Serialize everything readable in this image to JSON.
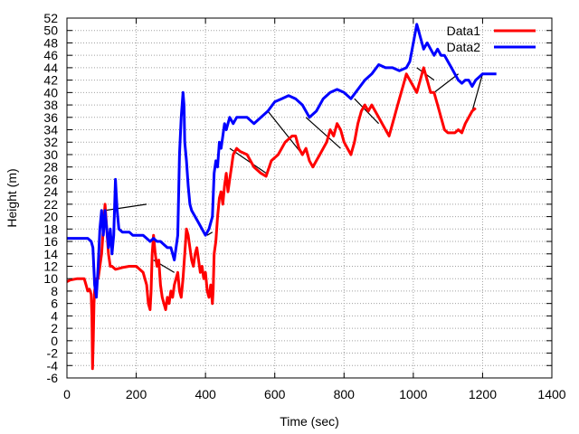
{
  "chart_data": {
    "type": "line",
    "xlabel": "Time (sec)",
    "ylabel": "Height (m)",
    "xlim": [
      0,
      1400
    ],
    "ylim": [
      -6,
      52
    ],
    "xticks": [
      0,
      200,
      400,
      600,
      800,
      1000,
      1200,
      1400
    ],
    "yticks": [
      -6,
      -4,
      -2,
      0,
      2,
      4,
      6,
      8,
      10,
      12,
      14,
      16,
      18,
      20,
      22,
      24,
      26,
      28,
      30,
      32,
      34,
      36,
      38,
      40,
      42,
      44,
      46,
      48,
      50,
      52
    ],
    "grid": true,
    "legend_position": "top-right",
    "series": [
      {
        "name": "Data1",
        "color": "#ff0000",
        "points": [
          [
            0,
            9.5
          ],
          [
            10,
            9.8
          ],
          [
            30,
            10
          ],
          [
            50,
            10
          ],
          [
            55,
            9
          ],
          [
            60,
            8
          ],
          [
            65,
            8.3
          ],
          [
            70,
            7.5
          ],
          [
            72,
            4
          ],
          [
            74,
            -4.5
          ],
          [
            76,
            0
          ],
          [
            78,
            6
          ],
          [
            80,
            8
          ],
          [
            85,
            10
          ],
          [
            90,
            10
          ],
          [
            95,
            12
          ],
          [
            100,
            14
          ],
          [
            105,
            18
          ],
          [
            110,
            22
          ],
          [
            115,
            18
          ],
          [
            120,
            14
          ],
          [
            125,
            12
          ],
          [
            130,
            12
          ],
          [
            140,
            11.5
          ],
          [
            160,
            11.8
          ],
          [
            180,
            12
          ],
          [
            200,
            12
          ],
          [
            210,
            11.5
          ],
          [
            220,
            11
          ],
          [
            230,
            9
          ],
          [
            235,
            6
          ],
          [
            240,
            5
          ],
          [
            243,
            8
          ],
          [
            246,
            14
          ],
          [
            250,
            17
          ],
          [
            255,
            14
          ],
          [
            260,
            12
          ],
          [
            265,
            13
          ],
          [
            270,
            9
          ],
          [
            275,
            7
          ],
          [
            280,
            6
          ],
          [
            285,
            5
          ],
          [
            290,
            7
          ],
          [
            295,
            6
          ],
          [
            300,
            8
          ],
          [
            305,
            7
          ],
          [
            310,
            9
          ],
          [
            315,
            10
          ],
          [
            320,
            11
          ],
          [
            325,
            8
          ],
          [
            330,
            7
          ],
          [
            335,
            10
          ],
          [
            340,
            14
          ],
          [
            345,
            18
          ],
          [
            350,
            17
          ],
          [
            355,
            15
          ],
          [
            360,
            13
          ],
          [
            365,
            12
          ],
          [
            370,
            14
          ],
          [
            375,
            15
          ],
          [
            380,
            13
          ],
          [
            385,
            11
          ],
          [
            390,
            12
          ],
          [
            395,
            10
          ],
          [
            400,
            11
          ],
          [
            405,
            8
          ],
          [
            410,
            7
          ],
          [
            415,
            9
          ],
          [
            420,
            6
          ],
          [
            422,
            8
          ],
          [
            425,
            14
          ],
          [
            430,
            16
          ],
          [
            435,
            20
          ],
          [
            440,
            23
          ],
          [
            445,
            24
          ],
          [
            450,
            22
          ],
          [
            455,
            25
          ],
          [
            460,
            27
          ],
          [
            465,
            24
          ],
          [
            470,
            26
          ],
          [
            475,
            28
          ],
          [
            480,
            30
          ],
          [
            490,
            31
          ],
          [
            500,
            30.5
          ],
          [
            520,
            30
          ],
          [
            540,
            28
          ],
          [
            560,
            27
          ],
          [
            575,
            26.5
          ],
          [
            590,
            29
          ],
          [
            610,
            30
          ],
          [
            630,
            32
          ],
          [
            650,
            33
          ],
          [
            660,
            33
          ],
          [
            670,
            31
          ],
          [
            680,
            30
          ],
          [
            690,
            31
          ],
          [
            700,
            29
          ],
          [
            710,
            28
          ],
          [
            720,
            29
          ],
          [
            730,
            30
          ],
          [
            750,
            32
          ],
          [
            760,
            34
          ],
          [
            770,
            33
          ],
          [
            780,
            35
          ],
          [
            790,
            34
          ],
          [
            800,
            32
          ],
          [
            810,
            31
          ],
          [
            820,
            30
          ],
          [
            830,
            32
          ],
          [
            840,
            35
          ],
          [
            850,
            37
          ],
          [
            860,
            38
          ],
          [
            870,
            37
          ],
          [
            880,
            38
          ],
          [
            890,
            37
          ],
          [
            900,
            36
          ],
          [
            910,
            35
          ],
          [
            920,
            34
          ],
          [
            930,
            33
          ],
          [
            940,
            35
          ],
          [
            950,
            37
          ],
          [
            960,
            39
          ],
          [
            970,
            41
          ],
          [
            980,
            43
          ],
          [
            990,
            42
          ],
          [
            1000,
            41
          ],
          [
            1010,
            40
          ],
          [
            1020,
            42
          ],
          [
            1030,
            44
          ],
          [
            1040,
            42
          ],
          [
            1050,
            40
          ],
          [
            1060,
            40
          ],
          [
            1070,
            38
          ],
          [
            1080,
            36
          ],
          [
            1090,
            34
          ],
          [
            1100,
            33.5
          ],
          [
            1110,
            33.5
          ],
          [
            1120,
            33.5
          ],
          [
            1130,
            34
          ],
          [
            1140,
            33.5
          ],
          [
            1150,
            35
          ],
          [
            1160,
            36
          ],
          [
            1170,
            37
          ],
          [
            1180,
            37.5
          ]
        ]
      },
      {
        "name": "Data2",
        "color": "#0000ff",
        "points": [
          [
            0,
            16.5
          ],
          [
            20,
            16.5
          ],
          [
            40,
            16.5
          ],
          [
            60,
            16.5
          ],
          [
            70,
            16
          ],
          [
            75,
            15
          ],
          [
            80,
            9
          ],
          [
            85,
            7
          ],
          [
            90,
            12
          ],
          [
            95,
            18
          ],
          [
            100,
            21
          ],
          [
            105,
            17
          ],
          [
            110,
            21
          ],
          [
            115,
            18
          ],
          [
            120,
            15
          ],
          [
            125,
            18
          ],
          [
            130,
            14
          ],
          [
            135,
            17
          ],
          [
            140,
            26
          ],
          [
            145,
            21
          ],
          [
            150,
            18
          ],
          [
            160,
            17.5
          ],
          [
            170,
            17.5
          ],
          [
            180,
            17.5
          ],
          [
            190,
            17
          ],
          [
            200,
            17
          ],
          [
            210,
            17
          ],
          [
            220,
            17
          ],
          [
            230,
            16.5
          ],
          [
            240,
            16
          ],
          [
            250,
            16.5
          ],
          [
            260,
            16
          ],
          [
            270,
            16
          ],
          [
            280,
            15.5
          ],
          [
            290,
            15
          ],
          [
            300,
            15
          ],
          [
            310,
            13
          ],
          [
            320,
            17
          ],
          [
            325,
            30
          ],
          [
            330,
            36
          ],
          [
            335,
            40
          ],
          [
            338,
            38
          ],
          [
            340,
            32
          ],
          [
            345,
            29
          ],
          [
            350,
            25
          ],
          [
            355,
            22
          ],
          [
            360,
            21
          ],
          [
            370,
            20
          ],
          [
            380,
            19
          ],
          [
            390,
            18
          ],
          [
            400,
            17
          ],
          [
            410,
            18
          ],
          [
            420,
            20
          ],
          [
            425,
            27
          ],
          [
            430,
            29
          ],
          [
            435,
            28
          ],
          [
            440,
            32
          ],
          [
            445,
            31
          ],
          [
            450,
            33
          ],
          [
            455,
            35
          ],
          [
            460,
            34
          ],
          [
            470,
            36
          ],
          [
            480,
            35
          ],
          [
            490,
            36
          ],
          [
            500,
            36
          ],
          [
            520,
            36
          ],
          [
            540,
            35
          ],
          [
            560,
            36
          ],
          [
            580,
            37
          ],
          [
            600,
            38.5
          ],
          [
            620,
            39
          ],
          [
            640,
            39.5
          ],
          [
            660,
            39
          ],
          [
            680,
            38
          ],
          [
            700,
            36
          ],
          [
            720,
            37
          ],
          [
            740,
            39
          ],
          [
            760,
            40
          ],
          [
            780,
            40.5
          ],
          [
            800,
            40
          ],
          [
            820,
            39
          ],
          [
            840,
            40.5
          ],
          [
            860,
            42
          ],
          [
            880,
            43
          ],
          [
            900,
            44.5
          ],
          [
            920,
            44
          ],
          [
            940,
            44
          ],
          [
            960,
            43.5
          ],
          [
            980,
            44
          ],
          [
            990,
            45
          ],
          [
            1000,
            48
          ],
          [
            1010,
            51
          ],
          [
            1015,
            50
          ],
          [
            1020,
            49
          ],
          [
            1030,
            47
          ],
          [
            1040,
            48
          ],
          [
            1050,
            47
          ],
          [
            1060,
            46
          ],
          [
            1070,
            47
          ],
          [
            1080,
            46
          ],
          [
            1090,
            46
          ],
          [
            1100,
            45
          ],
          [
            1110,
            44
          ],
          [
            1120,
            43
          ],
          [
            1130,
            42
          ],
          [
            1140,
            41.5
          ],
          [
            1150,
            42
          ],
          [
            1160,
            42
          ],
          [
            1170,
            41
          ],
          [
            1180,
            42
          ],
          [
            1190,
            42.5
          ],
          [
            1200,
            43
          ],
          [
            1220,
            43
          ],
          [
            1240,
            43
          ]
        ]
      }
    ],
    "connector_segments": [
      [
        [
          110,
          21
        ],
        [
          230,
          22
        ]
      ],
      [
        [
          250,
          13
        ],
        [
          310,
          11
        ]
      ],
      [
        [
          405,
          17
        ],
        [
          420,
          17.5
        ]
      ],
      [
        [
          470,
          31
        ],
        [
          575,
          27
        ]
      ],
      [
        [
          580,
          37
        ],
        [
          680,
          30
        ]
      ],
      [
        [
          690,
          36
        ],
        [
          790,
          31
        ]
      ],
      [
        [
          830,
          39
        ],
        [
          900,
          35
        ]
      ],
      [
        [
          1010,
          44
        ],
        [
          1060,
          42
        ]
      ],
      [
        [
          1060,
          40
        ],
        [
          1130,
          43
        ]
      ],
      [
        [
          1170,
          37
        ],
        [
          1200,
          43
        ]
      ]
    ]
  }
}
